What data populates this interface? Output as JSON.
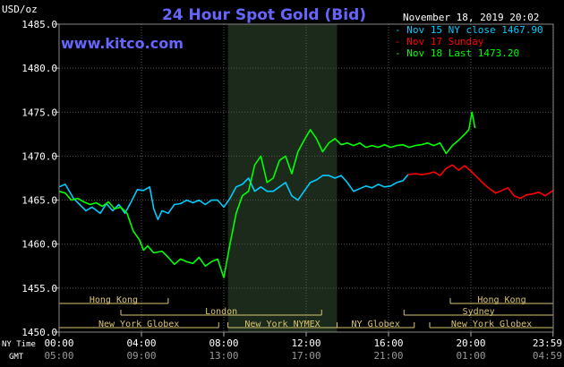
{
  "header": {
    "unit_label": "USD/oz",
    "title": "24 Hour Spot Gold (Bid)",
    "date_label": "November 18, 2019 20:02",
    "brand": "www.kitco.com"
  },
  "legend": [
    {
      "text": "Nov 15 NY close 1467.90",
      "color": "#00ccff"
    },
    {
      "text": "Nov 17 Sunday",
      "color": "#ff0000"
    },
    {
      "text": "Nov 18 Last 1473.20",
      "color": "#00ff00"
    }
  ],
  "axis_rows": {
    "row1_label": "NY Time",
    "row2_label": "GMT",
    "ny_ticks": [
      "00:00",
      "04:00",
      "08:00",
      "12:00",
      "16:00",
      "20:00",
      "23:59"
    ],
    "gmt_ticks": [
      "05:00",
      "09:00",
      "13:00",
      "17:00",
      "21:00",
      "01:00",
      "04:59"
    ]
  },
  "sessions": [
    {
      "name": "Hong Kong",
      "start": 0,
      "end": 5.3,
      "row": 0
    },
    {
      "name": "Hong Kong",
      "start": 19,
      "end": 24,
      "row": 0
    },
    {
      "name": "London",
      "start": 3,
      "end": 12.75,
      "row": 1
    },
    {
      "name": "Sydney",
      "start": 16.75,
      "end": 24,
      "row": 1
    },
    {
      "name": "New York Globex",
      "start": 0,
      "end": 7.75,
      "row": 2
    },
    {
      "name": "New York NYMEX",
      "start": 8.2,
      "end": 13.5,
      "row": 2
    },
    {
      "name": "NY Globex",
      "start": 13.5,
      "end": 17.25,
      "row": 2
    },
    {
      "name": "New York Globex",
      "start": 18,
      "end": 24,
      "row": 2
    }
  ],
  "chart_data": {
    "type": "line",
    "xlabel": "",
    "ylabel": "USD/oz",
    "xlim": [
      0,
      24
    ],
    "ylim": [
      1450,
      1485
    ],
    "y_ticks": [
      1450,
      1455,
      1460,
      1465,
      1470,
      1475,
      1480,
      1485
    ],
    "grid": true,
    "shaded_region": {
      "start": 8.2,
      "end": 13.5
    },
    "series": [
      {
        "name": "Nov 15 NY close 1467.90",
        "color": "#00ccff",
        "x": [
          0,
          0.3,
          0.7,
          1.0,
          1.3,
          1.6,
          2.0,
          2.3,
          2.6,
          2.9,
          3.2,
          3.5,
          3.8,
          4.1,
          4.4,
          4.6,
          4.8,
          5.0,
          5.3,
          5.6,
          5.9,
          6.2,
          6.5,
          6.8,
          7.1,
          7.4,
          7.7,
          8.0,
          8.3,
          8.6,
          8.9,
          9.2,
          9.5,
          9.8,
          10.1,
          10.4,
          10.7,
          11.0,
          11.3,
          11.6,
          11.9,
          12.2,
          12.5,
          12.8,
          13.1,
          13.4,
          13.7,
          14.0,
          14.3,
          14.6,
          14.9,
          15.2,
          15.5,
          15.8,
          16.1,
          16.4,
          16.7,
          16.95
        ],
        "y": [
          1466.5,
          1466.8,
          1465.2,
          1464.5,
          1463.8,
          1464.2,
          1463.5,
          1464.6,
          1463.8,
          1464.5,
          1463.5,
          1464.8,
          1466.2,
          1466.1,
          1466.5,
          1464.0,
          1462.8,
          1463.8,
          1463.5,
          1464.5,
          1464.6,
          1465.0,
          1464.7,
          1465.0,
          1464.5,
          1465.0,
          1465.0,
          1464.2,
          1465.2,
          1466.5,
          1466.8,
          1467.5,
          1466.0,
          1466.5,
          1466.0,
          1466.0,
          1466.5,
          1467.0,
          1465.5,
          1465.0,
          1466.0,
          1467.0,
          1467.3,
          1467.8,
          1467.8,
          1467.5,
          1467.8,
          1467.0,
          1466.0,
          1466.3,
          1466.6,
          1466.4,
          1466.8,
          1466.5,
          1466.6,
          1467.0,
          1467.2,
          1467.9
        ]
      },
      {
        "name": "Nov 17 Sunday",
        "color": "#ff0000",
        "x": [
          16.95,
          17.3,
          17.6,
          17.9,
          18.2,
          18.5,
          18.8,
          19.1,
          19.4,
          19.7,
          20.0,
          20.3,
          20.6,
          20.9,
          21.2,
          21.5,
          21.8,
          22.1,
          22.4,
          22.7,
          23.0,
          23.3,
          23.6,
          23.99
        ],
        "y": [
          1467.9,
          1468.0,
          1467.9,
          1468.0,
          1468.2,
          1467.8,
          1468.6,
          1469.0,
          1468.4,
          1468.9,
          1468.3,
          1467.6,
          1466.9,
          1466.3,
          1465.8,
          1466.1,
          1466.4,
          1465.5,
          1465.2,
          1465.6,
          1465.7,
          1465.9,
          1465.5,
          1466.1
        ]
      },
      {
        "name": "Nov 18 Last 1473.20",
        "color": "#00ff00",
        "x": [
          0,
          0.3,
          0.6,
          0.9,
          1.2,
          1.5,
          1.8,
          2.1,
          2.4,
          2.7,
          3.0,
          3.3,
          3.6,
          3.9,
          4.1,
          4.3,
          4.6,
          5.0,
          5.3,
          5.6,
          5.9,
          6.2,
          6.5,
          6.8,
          7.1,
          7.4,
          7.7,
          8.0,
          8.3,
          8.6,
          8.9,
          9.2,
          9.5,
          9.8,
          10.1,
          10.4,
          10.7,
          11.0,
          11.3,
          11.6,
          11.9,
          12.2,
          12.5,
          12.8,
          13.1,
          13.4,
          13.7,
          14.0,
          14.3,
          14.6,
          14.9,
          15.2,
          15.5,
          15.8,
          16.1,
          16.4,
          16.7,
          17.0,
          17.3,
          17.6,
          17.9,
          18.2,
          18.5,
          18.8,
          19.1,
          19.4,
          19.7,
          19.9,
          20.05,
          20.2
        ],
        "y": [
          1466.0,
          1465.8,
          1465.0,
          1465.2,
          1464.8,
          1464.5,
          1464.7,
          1464.3,
          1464.8,
          1464.0,
          1464.2,
          1463.5,
          1461.5,
          1460.5,
          1459.3,
          1459.8,
          1459.0,
          1459.2,
          1458.5,
          1457.7,
          1458.3,
          1458.0,
          1457.8,
          1458.5,
          1457.5,
          1458.0,
          1458.3,
          1456.2,
          1460.0,
          1463.5,
          1465.5,
          1466.0,
          1469.0,
          1470.0,
          1467.0,
          1467.5,
          1469.5,
          1470.0,
          1468.0,
          1470.5,
          1471.8,
          1473.0,
          1472.0,
          1470.5,
          1471.5,
          1472.0,
          1471.3,
          1471.5,
          1471.2,
          1471.5,
          1471.0,
          1471.2,
          1471.0,
          1471.3,
          1471.0,
          1471.2,
          1471.3,
          1471.0,
          1471.2,
          1471.3,
          1471.5,
          1471.2,
          1471.5,
          1470.3,
          1471.2,
          1471.8,
          1472.5,
          1473.0,
          1475.0,
          1473.2
        ]
      }
    ]
  }
}
